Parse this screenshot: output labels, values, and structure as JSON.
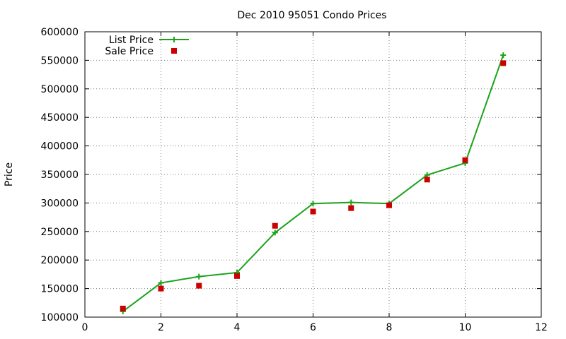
{
  "chart_data": {
    "type": "line",
    "title": "Dec 2010 95051 Condo Prices",
    "xlabel": "",
    "ylabel": "Price",
    "xlim": [
      0,
      12
    ],
    "ylim": [
      100000,
      600000
    ],
    "x_ticks": [
      0,
      2,
      4,
      6,
      8,
      10,
      12
    ],
    "y_ticks": [
      100000,
      150000,
      200000,
      250000,
      300000,
      350000,
      400000,
      450000,
      500000,
      550000,
      600000
    ],
    "grid": true,
    "legend_position": "top-left",
    "series": [
      {
        "name": "List Price",
        "style": "line+plus",
        "color": "#1aa31a",
        "points": [
          [
            1,
            110000
          ],
          [
            2,
            160000
          ],
          [
            3,
            171000
          ],
          [
            4,
            178000
          ],
          [
            5,
            248000
          ],
          [
            6,
            299000
          ],
          [
            7,
            301000
          ],
          [
            8,
            299000
          ],
          [
            9,
            349000
          ],
          [
            10,
            370000
          ],
          [
            11,
            559000
          ]
        ]
      },
      {
        "name": "Sale Price",
        "style": "square",
        "color": "#cc0000",
        "points": [
          [
            1,
            115000
          ],
          [
            2,
            150000
          ],
          [
            3,
            155000
          ],
          [
            4,
            172000
          ],
          [
            5,
            260000
          ],
          [
            6,
            285000
          ],
          [
            7,
            291000
          ],
          [
            8,
            296000
          ],
          [
            9,
            341000
          ],
          [
            10,
            375000
          ],
          [
            11,
            545000
          ]
        ]
      }
    ]
  }
}
